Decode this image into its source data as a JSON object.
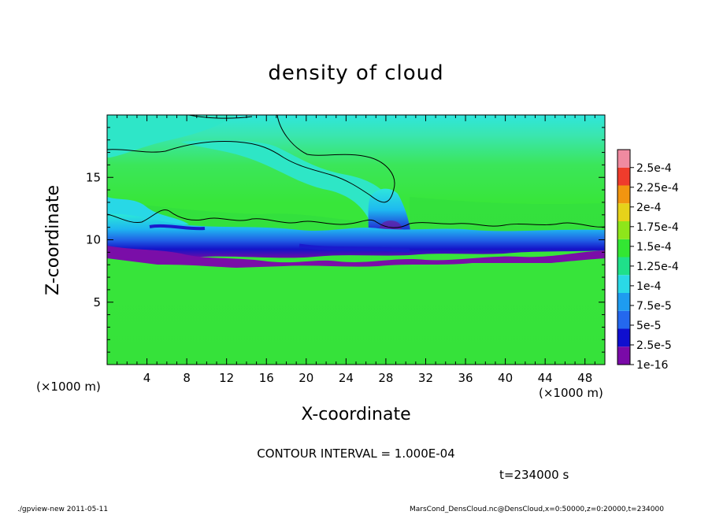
{
  "chart_data": {
    "type": "heatmap",
    "title": "density of cloud",
    "xlabel": "X-coordinate",
    "ylabel": "Z-coordinate",
    "x_unit_left": "(×1000 m)",
    "x_unit_right": "(×1000 m)",
    "xlim": [
      0,
      50
    ],
    "ylim": [
      0,
      20
    ],
    "x_ticks": [
      "4",
      "8",
      "12",
      "16",
      "20",
      "24",
      "28",
      "32",
      "36",
      "40",
      "44",
      "48"
    ],
    "y_ticks": [
      "5",
      "10",
      "15"
    ],
    "colorbar_labels": [
      "1e-16",
      "2.5e-5",
      "5e-5",
      "7.5e-5",
      "1e-4",
      "1.25e-4",
      "1.5e-4",
      "1.75e-4",
      "2e-4",
      "2.25e-4",
      "2.5e-4"
    ],
    "colorbar_colors": [
      "#7a0aa8",
      "#0f0fcf",
      "#2468ee",
      "#1e9cf0",
      "#2ad9e6",
      "#1fe08a",
      "#33e633",
      "#8ee61a",
      "#e6d21a",
      "#f29510",
      "#ef3c2c",
      "#f08aa0"
    ],
    "contour_interval": "CONTOUR INTERVAL = 1.000E-04",
    "time_label": "t=234000 s",
    "footer_left": "./gpview-new   2011-05-11",
    "footer_right": "MarsCond_DensCloud.nc@DensCloud,x=0:50000,z=0:20000,t=234000"
  }
}
